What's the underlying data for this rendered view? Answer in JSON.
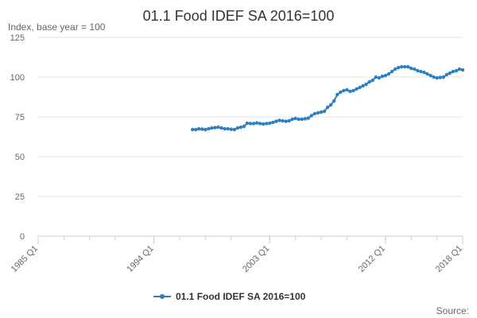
{
  "chart_data": {
    "type": "line",
    "title": "01.1 Food IDEF SA 2016=100",
    "ylabel": "Index, base year = 100",
    "xlabel": "",
    "x_tick_labels": [
      "1985 Q1",
      "1994 Q1",
      "2003 Q1",
      "2012 Q1",
      "2018 Q1"
    ],
    "x_tick_positions": [
      1985,
      1994,
      2003,
      2012,
      2018
    ],
    "xlim": [
      1985,
      2018
    ],
    "x_minor_ticks": [
      1985,
      1987,
      1989,
      1991,
      1994,
      1996,
      1998,
      2000,
      2003,
      2005,
      2007,
      2009,
      2012,
      2014,
      2016,
      2018
    ],
    "y_tick_labels": [
      "0",
      "25",
      "50",
      "75",
      "100",
      "125"
    ],
    "y_ticks": [
      0,
      25,
      50,
      75,
      100,
      125
    ],
    "ylim": [
      0,
      125
    ],
    "grid": "horizontal",
    "legend_position": "bottom-center",
    "series": [
      {
        "name": "01.1 Food IDEF SA 2016=100",
        "color": "#2b7fc1",
        "x": [
          1997,
          1997.25,
          1997.5,
          1997.75,
          1998,
          1998.25,
          1998.5,
          1998.75,
          1999,
          1999.25,
          1999.5,
          1999.75,
          2000,
          2000.25,
          2000.5,
          2000.75,
          2001,
          2001.25,
          2001.5,
          2001.75,
          2002,
          2002.25,
          2002.5,
          2002.75,
          2003,
          2003.25,
          2003.5,
          2003.75,
          2004,
          2004.25,
          2004.5,
          2004.75,
          2005,
          2005.25,
          2005.5,
          2005.75,
          2006,
          2006.25,
          2006.5,
          2006.75,
          2007,
          2007.25,
          2007.5,
          2007.75,
          2008,
          2008.25,
          2008.5,
          2008.75,
          2009,
          2009.25,
          2009.5,
          2009.75,
          2010,
          2010.25,
          2010.5,
          2010.75,
          2011,
          2011.25,
          2011.5,
          2011.75,
          2012,
          2012.25,
          2012.5,
          2012.75,
          2013,
          2013.25,
          2013.5,
          2013.75,
          2014,
          2014.25,
          2014.5,
          2014.75,
          2015,
          2015.25,
          2015.5,
          2015.75,
          2016,
          2016.25,
          2016.5,
          2016.75,
          2017,
          2017.25,
          2017.5,
          2017.75,
          2018
        ],
        "values": [
          67,
          67,
          67.5,
          67.3,
          67,
          67.5,
          68,
          68.2,
          68.5,
          68,
          67.5,
          67.5,
          67.2,
          67,
          68,
          68.5,
          69,
          71,
          70.8,
          70.8,
          71.2,
          70.8,
          70.5,
          70.8,
          71,
          71.5,
          72.2,
          72.8,
          72.5,
          72.2,
          72.5,
          73.5,
          74,
          73.5,
          73.5,
          73.8,
          74.2,
          75.8,
          77,
          77.5,
          78,
          78.5,
          81,
          82.5,
          85,
          89,
          90.5,
          91.5,
          92,
          91,
          91.5,
          92.5,
          93.5,
          94.5,
          95.5,
          97,
          98,
          100,
          99.5,
          100.5,
          101,
          102,
          103.5,
          105,
          106,
          106.5,
          106.5,
          106.5,
          105.5,
          105,
          104,
          103.5,
          103,
          102,
          101,
          100,
          99.5,
          99.8,
          100,
          101.5,
          102.5,
          103.5,
          104,
          105,
          104.5
        ]
      }
    ]
  },
  "source_label": "Source:"
}
